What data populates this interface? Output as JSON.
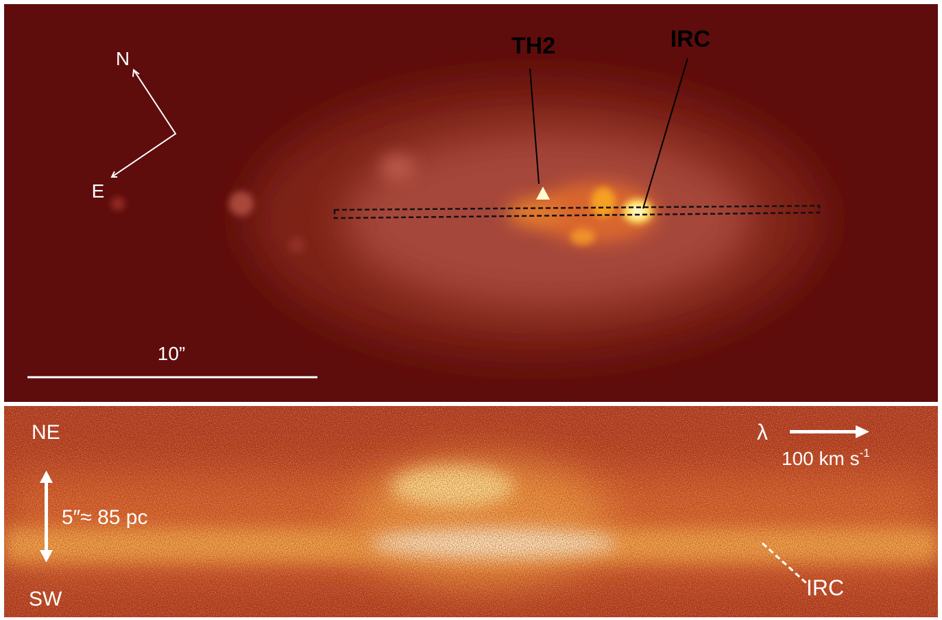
{
  "top_panel": {
    "compass": {
      "north": "N",
      "east": "E"
    },
    "labels": {
      "th2": "TH2",
      "irc": "IRC"
    },
    "scale_bar": "10”"
  },
  "bottom_panel": {
    "northeast": "NE",
    "southwest": "SW",
    "spatial_scale": "5″≈ 85 pc",
    "wavelength_symbol": "λ",
    "velocity_scale": {
      "text": "100 km s",
      "exponent": "-1"
    },
    "irc": "IRC"
  }
}
